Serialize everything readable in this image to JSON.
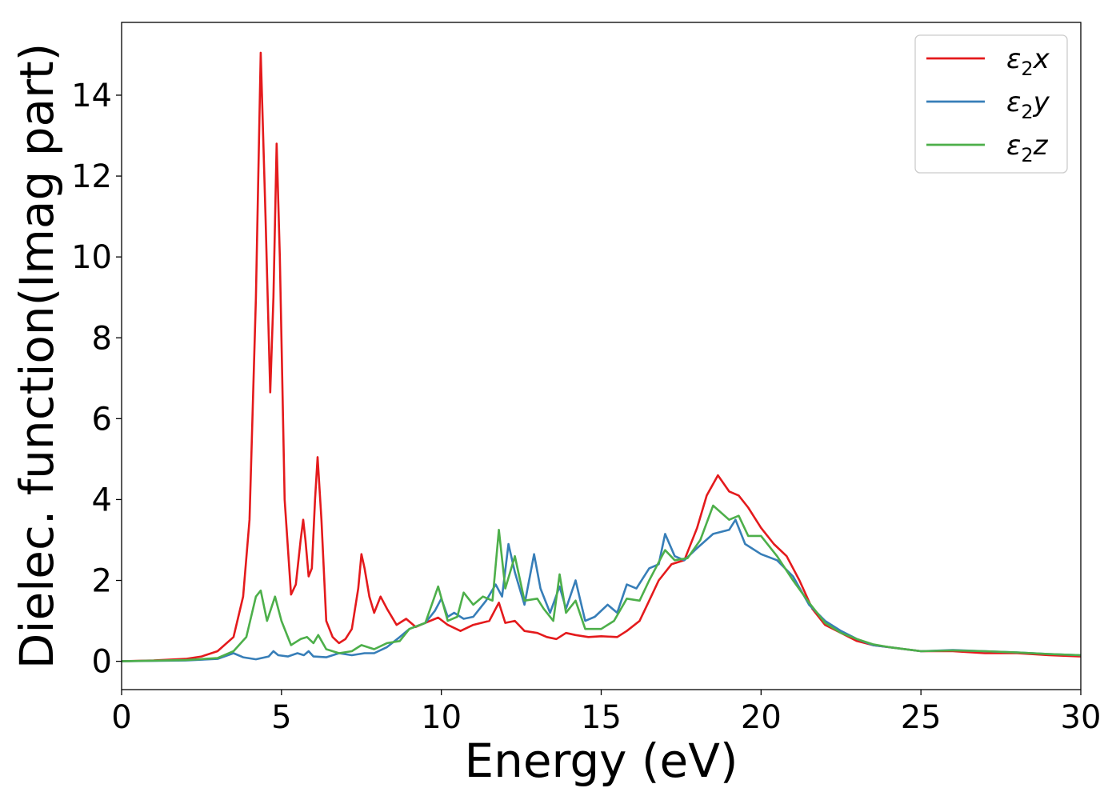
{
  "chart_data": {
    "type": "line",
    "title": "",
    "xlabel": "Energy (eV)",
    "ylabel": "Dielec. function(Imag part)",
    "xlim": [
      0,
      30
    ],
    "ylim": [
      -0.7,
      15.8
    ],
    "xticks": [
      0,
      5,
      10,
      15,
      20,
      25,
      30
    ],
    "yticks": [
      0,
      2,
      4,
      6,
      8,
      10,
      12,
      14
    ],
    "grid": false,
    "legend_position": "top-right",
    "series": [
      {
        "name": "ε₂x",
        "legend_base": "ε",
        "legend_sub": "2",
        "legend_suffix": "x",
        "color": "#e41a1c",
        "points": [
          [
            0,
            0
          ],
          [
            1,
            0.02
          ],
          [
            2,
            0.06
          ],
          [
            2.5,
            0.12
          ],
          [
            3,
            0.25
          ],
          [
            3.5,
            0.6
          ],
          [
            3.8,
            1.6
          ],
          [
            4,
            3.5
          ],
          [
            4.2,
            9
          ],
          [
            4.35,
            15.05
          ],
          [
            4.5,
            11
          ],
          [
            4.65,
            6.65
          ],
          [
            4.75,
            9
          ],
          [
            4.85,
            12.8
          ],
          [
            4.95,
            10
          ],
          [
            5.1,
            4
          ],
          [
            5.3,
            1.65
          ],
          [
            5.45,
            1.9
          ],
          [
            5.6,
            3
          ],
          [
            5.68,
            3.5
          ],
          [
            5.75,
            3
          ],
          [
            5.85,
            2.1
          ],
          [
            5.95,
            2.3
          ],
          [
            6.05,
            4
          ],
          [
            6.13,
            5.05
          ],
          [
            6.25,
            3.5
          ],
          [
            6.4,
            1
          ],
          [
            6.6,
            0.6
          ],
          [
            6.8,
            0.45
          ],
          [
            7,
            0.55
          ],
          [
            7.2,
            0.8
          ],
          [
            7.4,
            1.8
          ],
          [
            7.5,
            2.65
          ],
          [
            7.6,
            2.3
          ],
          [
            7.75,
            1.6
          ],
          [
            7.9,
            1.2
          ],
          [
            8.1,
            1.6
          ],
          [
            8.3,
            1.3
          ],
          [
            8.6,
            0.9
          ],
          [
            8.9,
            1.05
          ],
          [
            9.2,
            0.85
          ],
          [
            9.5,
            0.95
          ],
          [
            9.9,
            1.08
          ],
          [
            10.2,
            0.9
          ],
          [
            10.6,
            0.75
          ],
          [
            11,
            0.9
          ],
          [
            11.5,
            1.0
          ],
          [
            11.8,
            1.45
          ],
          [
            12,
            0.95
          ],
          [
            12.3,
            1.0
          ],
          [
            12.6,
            0.75
          ],
          [
            13,
            0.7
          ],
          [
            13.3,
            0.6
          ],
          [
            13.6,
            0.55
          ],
          [
            13.9,
            0.7
          ],
          [
            14.2,
            0.65
          ],
          [
            14.6,
            0.6
          ],
          [
            15,
            0.62
          ],
          [
            15.5,
            0.6
          ],
          [
            15.8,
            0.75
          ],
          [
            16.2,
            1.0
          ],
          [
            16.5,
            1.5
          ],
          [
            16.8,
            2.0
          ],
          [
            17.2,
            2.4
          ],
          [
            17.6,
            2.5
          ],
          [
            18,
            3.3
          ],
          [
            18.3,
            4.1
          ],
          [
            18.65,
            4.6
          ],
          [
            19,
            4.2
          ],
          [
            19.3,
            4.1
          ],
          [
            19.6,
            3.8
          ],
          [
            20,
            3.3
          ],
          [
            20.4,
            2.9
          ],
          [
            20.8,
            2.6
          ],
          [
            21.2,
            2.0
          ],
          [
            21.6,
            1.3
          ],
          [
            22,
            0.9
          ],
          [
            22.5,
            0.7
          ],
          [
            23,
            0.5
          ],
          [
            23.5,
            0.4
          ],
          [
            24,
            0.35
          ],
          [
            24.5,
            0.3
          ],
          [
            25,
            0.25
          ],
          [
            26,
            0.25
          ],
          [
            27,
            0.2
          ],
          [
            28,
            0.2
          ],
          [
            29,
            0.15
          ],
          [
            30,
            0.12
          ]
        ]
      },
      {
        "name": "ε₂y",
        "legend_base": "ε",
        "legend_sub": "2",
        "legend_suffix": "y",
        "color": "#377eb8",
        "points": [
          [
            0,
            0
          ],
          [
            2,
            0.02
          ],
          [
            3,
            0.06
          ],
          [
            3.5,
            0.2
          ],
          [
            3.8,
            0.1
          ],
          [
            4.2,
            0.05
          ],
          [
            4.6,
            0.12
          ],
          [
            4.75,
            0.25
          ],
          [
            4.9,
            0.15
          ],
          [
            5.2,
            0.12
          ],
          [
            5.5,
            0.2
          ],
          [
            5.7,
            0.15
          ],
          [
            5.85,
            0.25
          ],
          [
            6,
            0.12
          ],
          [
            6.4,
            0.1
          ],
          [
            6.8,
            0.2
          ],
          [
            7.2,
            0.15
          ],
          [
            7.6,
            0.2
          ],
          [
            7.9,
            0.2
          ],
          [
            8.3,
            0.35
          ],
          [
            8.7,
            0.6
          ],
          [
            9,
            0.8
          ],
          [
            9.5,
            0.95
          ],
          [
            9.8,
            1.25
          ],
          [
            10,
            1.55
          ],
          [
            10.2,
            1.1
          ],
          [
            10.4,
            1.2
          ],
          [
            10.7,
            1.05
          ],
          [
            11,
            1.1
          ],
          [
            11.4,
            1.5
          ],
          [
            11.7,
            1.9
          ],
          [
            11.9,
            1.6
          ],
          [
            12.1,
            2.9
          ],
          [
            12.3,
            2.2
          ],
          [
            12.6,
            1.4
          ],
          [
            12.9,
            2.65
          ],
          [
            13.1,
            1.8
          ],
          [
            13.4,
            1.2
          ],
          [
            13.7,
            1.85
          ],
          [
            13.9,
            1.3
          ],
          [
            14.2,
            2.0
          ],
          [
            14.5,
            1.0
          ],
          [
            14.8,
            1.1
          ],
          [
            15.2,
            1.4
          ],
          [
            15.5,
            1.2
          ],
          [
            15.8,
            1.9
          ],
          [
            16.1,
            1.8
          ],
          [
            16.5,
            2.3
          ],
          [
            16.8,
            2.4
          ],
          [
            17,
            3.15
          ],
          [
            17.3,
            2.6
          ],
          [
            17.6,
            2.5
          ],
          [
            18,
            2.8
          ],
          [
            18.5,
            3.15
          ],
          [
            19,
            3.25
          ],
          [
            19.2,
            3.5
          ],
          [
            19.5,
            2.9
          ],
          [
            20,
            2.65
          ],
          [
            20.5,
            2.5
          ],
          [
            21,
            2.1
          ],
          [
            21.5,
            1.4
          ],
          [
            22,
            1.0
          ],
          [
            22.5,
            0.75
          ],
          [
            23,
            0.55
          ],
          [
            23.5,
            0.4
          ],
          [
            24,
            0.35
          ],
          [
            24.5,
            0.3
          ],
          [
            25,
            0.25
          ],
          [
            26,
            0.28
          ],
          [
            27,
            0.25
          ],
          [
            28,
            0.22
          ],
          [
            29,
            0.18
          ],
          [
            30,
            0.15
          ]
        ]
      },
      {
        "name": "ε₂z",
        "legend_base": "ε",
        "legend_sub": "2",
        "legend_suffix": "z",
        "color": "#4daf4a",
        "points": [
          [
            0,
            0
          ],
          [
            2,
            0.03
          ],
          [
            3,
            0.08
          ],
          [
            3.5,
            0.25
          ],
          [
            3.9,
            0.6
          ],
          [
            4.2,
            1.6
          ],
          [
            4.35,
            1.75
          ],
          [
            4.55,
            1.0
          ],
          [
            4.8,
            1.6
          ],
          [
            5.0,
            1.0
          ],
          [
            5.3,
            0.4
          ],
          [
            5.6,
            0.55
          ],
          [
            5.8,
            0.6
          ],
          [
            6.0,
            0.45
          ],
          [
            6.15,
            0.65
          ],
          [
            6.4,
            0.3
          ],
          [
            6.8,
            0.2
          ],
          [
            7.2,
            0.25
          ],
          [
            7.5,
            0.4
          ],
          [
            7.9,
            0.3
          ],
          [
            8.3,
            0.45
          ],
          [
            8.7,
            0.5
          ],
          [
            9.0,
            0.8
          ],
          [
            9.5,
            0.95
          ],
          [
            9.9,
            1.85
          ],
          [
            10.2,
            1.0
          ],
          [
            10.5,
            1.1
          ],
          [
            10.7,
            1.7
          ],
          [
            11.0,
            1.4
          ],
          [
            11.3,
            1.6
          ],
          [
            11.6,
            1.5
          ],
          [
            11.8,
            3.25
          ],
          [
            12.0,
            1.8
          ],
          [
            12.3,
            2.6
          ],
          [
            12.6,
            1.5
          ],
          [
            13.0,
            1.55
          ],
          [
            13.2,
            1.3
          ],
          [
            13.5,
            1.0
          ],
          [
            13.7,
            2.15
          ],
          [
            13.9,
            1.2
          ],
          [
            14.2,
            1.5
          ],
          [
            14.5,
            0.8
          ],
          [
            15.0,
            0.8
          ],
          [
            15.4,
            1.0
          ],
          [
            15.8,
            1.55
          ],
          [
            16.2,
            1.5
          ],
          [
            16.5,
            2.0
          ],
          [
            16.8,
            2.45
          ],
          [
            17.0,
            2.75
          ],
          [
            17.3,
            2.5
          ],
          [
            17.7,
            2.55
          ],
          [
            18.1,
            3.0
          ],
          [
            18.5,
            3.85
          ],
          [
            19.0,
            3.5
          ],
          [
            19.3,
            3.6
          ],
          [
            19.6,
            3.1
          ],
          [
            20.0,
            3.1
          ],
          [
            20.5,
            2.6
          ],
          [
            21.0,
            2.0
          ],
          [
            21.5,
            1.45
          ],
          [
            22.0,
            0.95
          ],
          [
            22.5,
            0.7
          ],
          [
            23.0,
            0.55
          ],
          [
            23.5,
            0.42
          ],
          [
            24.0,
            0.35
          ],
          [
            25.0,
            0.25
          ],
          [
            26.0,
            0.27
          ],
          [
            27.0,
            0.25
          ],
          [
            28.0,
            0.22
          ],
          [
            29.0,
            0.18
          ],
          [
            30.0,
            0.15
          ]
        ]
      }
    ]
  }
}
